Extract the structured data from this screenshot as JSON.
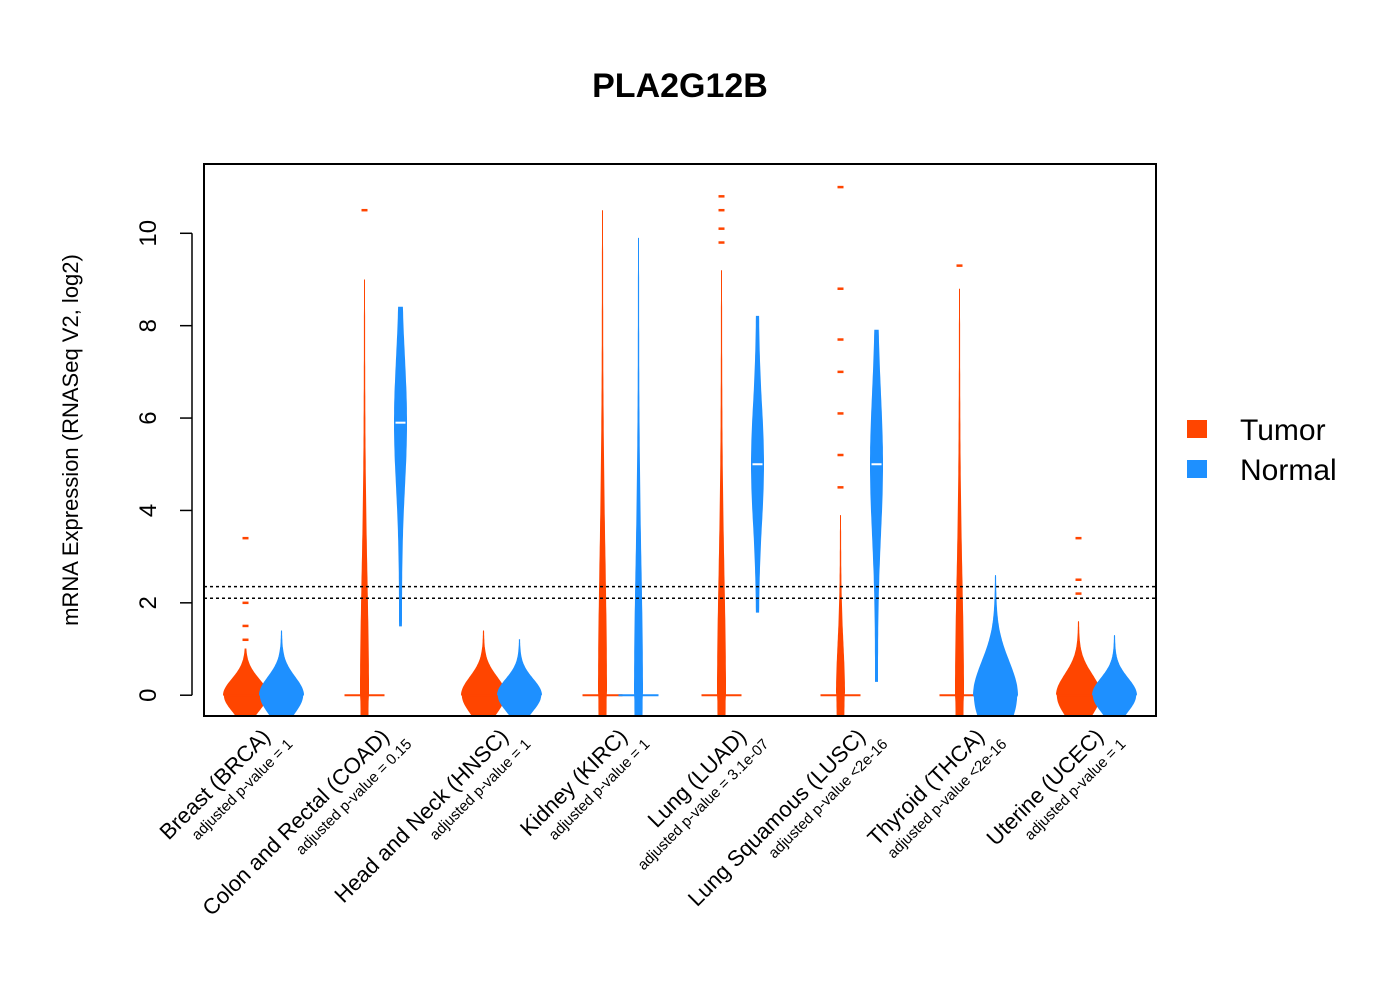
{
  "chart_data": {
    "type": "violin",
    "title": "PLA2G12B",
    "ylabel": "mRNA Expression (RNASeq V2, log2)",
    "xlabel": "",
    "ylim": [
      -0.45,
      11.5
    ],
    "yticks": [
      0,
      2,
      4,
      6,
      8,
      10
    ],
    "reference_lines": [
      2.1,
      2.35
    ],
    "grid": false,
    "legend": {
      "position": "right",
      "entries": [
        {
          "name": "Tumor",
          "color": "#FF4500"
        },
        {
          "name": "Normal",
          "color": "#1E90FF"
        }
      ]
    },
    "categories": [
      {
        "name": "Breast (BRCA)",
        "pvalue": "adjusted p-value = 1",
        "tumor": {
          "median": 0.0,
          "max": 1.0,
          "outliers": [
            1.2,
            1.5,
            2.0,
            3.4
          ]
        },
        "normal": {
          "median": 0.0,
          "max": 1.4,
          "outliers": []
        }
      },
      {
        "name": "Colon and Rectal (COAD)",
        "pvalue": "adjusted p-value = 0.15",
        "tumor": {
          "median": 0.0,
          "max": 9.0,
          "outliers": [
            10.5
          ]
        },
        "normal": {
          "median": 5.9,
          "min": 1.5,
          "max": 8.4,
          "outliers": []
        }
      },
      {
        "name": "Head and Neck (HNSC)",
        "pvalue": "adjusted p-value = 1",
        "tumor": {
          "median": 0.0,
          "max": 1.4,
          "outliers": []
        },
        "normal": {
          "median": 0.0,
          "max": 1.2,
          "outliers": []
        }
      },
      {
        "name": "Kidney (KIRC)",
        "pvalue": "adjusted p-value = 1",
        "tumor": {
          "median": 0.0,
          "max": 10.5,
          "outliers": []
        },
        "normal": {
          "median": 0.0,
          "max": 9.9,
          "outliers": []
        }
      },
      {
        "name": "Lung (LUAD)",
        "pvalue": "adjusted p-value = 3.1e-07",
        "tumor": {
          "median": 0.0,
          "max": 9.2,
          "outliers": [
            9.8,
            10.1,
            10.5,
            10.8
          ]
        },
        "normal": {
          "median": 5.0,
          "min": 1.8,
          "max": 8.2,
          "outliers": []
        }
      },
      {
        "name": "Lung Squamous (LUSC)",
        "pvalue": "adjusted p-value <2e-16",
        "tumor": {
          "median": 0.0,
          "max": 3.9,
          "outliers": [
            4.5,
            5.2,
            6.1,
            7.0,
            7.7,
            8.8,
            11.0
          ]
        },
        "normal": {
          "median": 5.0,
          "min": 0.3,
          "max": 7.9,
          "outliers": []
        }
      },
      {
        "name": "Thyroid (THCA)",
        "pvalue": "adjusted p-value <2e-16",
        "tumor": {
          "median": 0.0,
          "max": 8.8,
          "outliers": [
            9.3
          ]
        },
        "normal": {
          "median": 0.0,
          "max": 2.6,
          "outliers": []
        }
      },
      {
        "name": "Uterine (UCEC)",
        "pvalue": "adjusted p-value = 1",
        "tumor": {
          "median": 0.0,
          "max": 1.6,
          "outliers": [
            2.2,
            2.5,
            3.4
          ]
        },
        "normal": {
          "median": 0.0,
          "max": 1.3,
          "outliers": []
        }
      }
    ]
  }
}
